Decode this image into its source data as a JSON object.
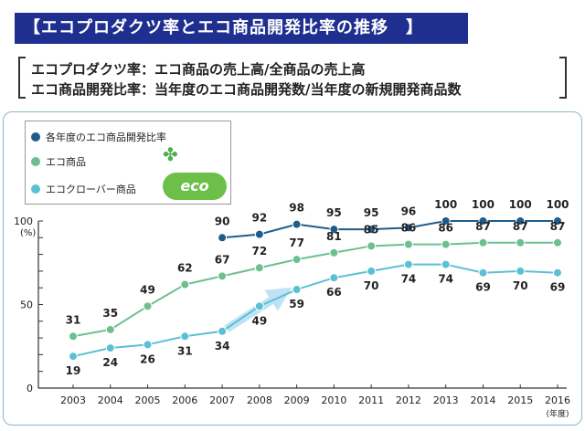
{
  "header": {
    "title": "【エコプロダクツ率とエコ商品開発比率の推移　】",
    "def_line1": "エコプロダクツ率：エコ商品の売上高/全商品の売上高",
    "def_line2": "エコ商品開発比率：当年度のエコ商品開発数/当年度の新規開発商品数"
  },
  "legend": {
    "items": [
      {
        "label": "各年度のエコ商品開発比率",
        "color": "#1f5c8a"
      },
      {
        "label": "エコ商品",
        "color": "#6dbf8e"
      },
      {
        "label": "エコクローバー商品",
        "color": "#5bc0d4"
      }
    ],
    "logo_text": "eco"
  },
  "chart_data": {
    "type": "line",
    "x": [
      "2003",
      "2004",
      "2005",
      "2006",
      "2007",
      "2008",
      "2009",
      "2010",
      "2011",
      "2012",
      "2013",
      "2014",
      "2015",
      "2016"
    ],
    "x_unit": "(年度)",
    "y_unit": "(%)",
    "ylim": [
      0,
      100
    ],
    "y_ticks": [
      0,
      50,
      100
    ],
    "series": [
      {
        "name": "各年度のエコ商品開発比率",
        "color": "#1f5c8a",
        "values": [
          null,
          null,
          null,
          null,
          90,
          92,
          98,
          95,
          95,
          96,
          100,
          100,
          100,
          100
        ]
      },
      {
        "name": "エコ商品",
        "color": "#6dbf8e",
        "values": [
          31,
          35,
          49,
          62,
          67,
          72,
          77,
          81,
          85,
          86,
          86,
          87,
          87,
          87
        ]
      },
      {
        "name": "エコクローバー商品",
        "color": "#5bc0d4",
        "values": [
          19,
          24,
          26,
          31,
          34,
          49,
          59,
          66,
          70,
          74,
          74,
          69,
          70,
          69
        ]
      }
    ]
  }
}
